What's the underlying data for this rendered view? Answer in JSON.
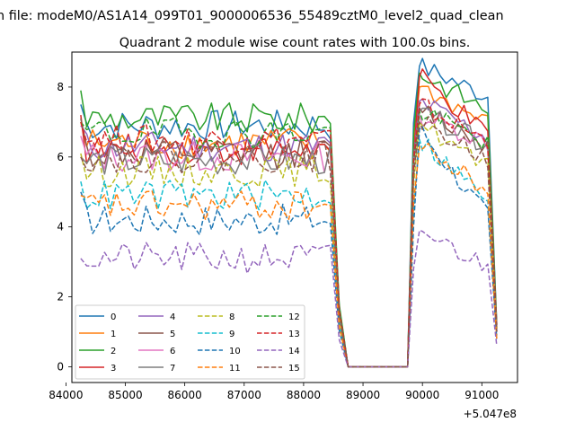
{
  "chart_data": {
    "type": "line",
    "suptitle": "n file: modeM0/AS1A14_099T01_9000006536_55489cztM0_level2_quad_clean",
    "title": "Quadrant 2 module wise count rates with 100.0s bins.",
    "xlabel": "",
    "ylabel": "",
    "x_offset_label": "+5.047e8",
    "xlim": [
      84100,
      91600
    ],
    "ylim": [
      -0.45,
      9.0
    ],
    "x_ticks": [
      84000,
      85000,
      86000,
      87000,
      88000,
      89000,
      90000,
      91000
    ],
    "x_tick_labels": [
      "84000",
      "85000",
      "86000",
      "87000",
      "88000",
      "89000",
      "90000",
      "91000"
    ],
    "y_ticks": [
      0,
      2,
      4,
      6,
      8
    ],
    "y_tick_labels": [
      "0",
      "2",
      "4",
      "6",
      "8"
    ],
    "grid": false,
    "legend_position": "lower-left",
    "legend_columns": 4,
    "x_start": 84250,
    "x_step": 100,
    "gap_segment": {
      "drop_end": 88750,
      "flat_end": 89750,
      "rise_end": 89950
    },
    "series_end_x": 91250,
    "series": [
      {
        "name": "0",
        "color": "#1f77b4",
        "style": "solid",
        "base": 6.9,
        "post": 8.2,
        "end": 1.2,
        "first": 7.5,
        "peak": 8.6
      },
      {
        "name": "1",
        "color": "#ff7f0e",
        "style": "solid",
        "base": 6.4,
        "post": 7.4,
        "end": 1.1,
        "first": 7.0,
        "peak": 8.0
      },
      {
        "name": "2",
        "color": "#2ca02c",
        "style": "solid",
        "base": 7.1,
        "post": 7.8,
        "end": 1.2,
        "first": 7.9,
        "peak": 8.4
      },
      {
        "name": "3",
        "color": "#d62728",
        "style": "solid",
        "base": 6.2,
        "post": 7.0,
        "end": 1.1,
        "first": 7.2,
        "peak": 8.3
      },
      {
        "name": "4",
        "color": "#9467bd",
        "style": "solid",
        "base": 6.3,
        "post": 7.0,
        "end": 1.1,
        "first": 6.9,
        "peak": 7.6
      },
      {
        "name": "5",
        "color": "#8c564b",
        "style": "solid",
        "base": 6.1,
        "post": 6.8,
        "end": 1.0,
        "first": 7.1,
        "peak": 7.4
      },
      {
        "name": "6",
        "color": "#e377c2",
        "style": "solid",
        "base": 6.0,
        "post": 6.9,
        "end": 1.0,
        "first": 6.6,
        "peak": 7.2
      },
      {
        "name": "7",
        "color": "#7f7f7f",
        "style": "solid",
        "base": 5.9,
        "post": 6.8,
        "end": 1.0,
        "first": 6.0,
        "peak": 7.3
      },
      {
        "name": "8",
        "color": "#bcbd22",
        "style": "dashed",
        "base": 5.6,
        "post": 6.1,
        "end": 1.0,
        "first": 6.1,
        "peak": 7.0
      },
      {
        "name": "9",
        "color": "#17becf",
        "style": "dashed",
        "base": 4.9,
        "post": 5.2,
        "end": 0.9,
        "first": 5.3,
        "peak": 6.5
      },
      {
        "name": "10",
        "color": "#1f77b4",
        "style": "dashed",
        "base": 4.2,
        "post": 4.7,
        "end": 0.8,
        "first": 5.0,
        "peak": 6.8
      },
      {
        "name": "11",
        "color": "#ff7f0e",
        "style": "dashed",
        "base": 4.6,
        "post": 5.5,
        "end": 0.8,
        "first": 4.9,
        "peak": 6.3
      },
      {
        "name": "12",
        "color": "#2ca02c",
        "style": "dashed",
        "base": 6.7,
        "post": 6.9,
        "end": 1.1,
        "first": 7.0,
        "peak": 7.3
      },
      {
        "name": "13",
        "color": "#d62728",
        "style": "dashed",
        "base": 6.5,
        "post": 6.9,
        "end": 1.1,
        "first": 7.0,
        "peak": 7.5
      },
      {
        "name": "14",
        "color": "#9467bd",
        "style": "dashed",
        "base": 3.1,
        "post": 3.3,
        "end": 0.6,
        "first": 3.1,
        "peak": 3.9
      },
      {
        "name": "15",
        "color": "#8c564b",
        "style": "dashed",
        "base": 6.0,
        "post": 6.4,
        "end": 1.0,
        "first": 6.0,
        "peak": 7.0
      }
    ]
  }
}
